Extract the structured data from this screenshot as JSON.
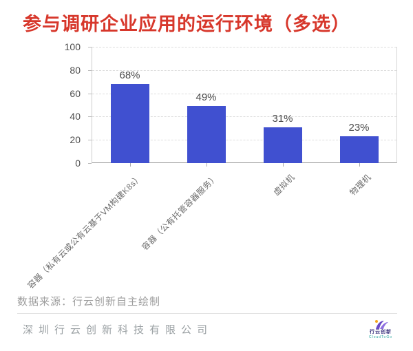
{
  "title": {
    "text": "参与调研企业应用的运行环境（多选）",
    "color": "#d7372b"
  },
  "chart_data": {
    "type": "bar",
    "title": "参与调研企业应用的运行环境（多选）",
    "categories": [
      "容器（私有云或公有云基于VM构建K8s）",
      "容器（公有托管容器服务）",
      "虚拟机",
      "物理机"
    ],
    "values": [
      68,
      49,
      31,
      23
    ],
    "data_labels": [
      "68%",
      "49%",
      "31%",
      "23%"
    ],
    "xlabel": "",
    "ylabel": "",
    "ylim": [
      0,
      100
    ],
    "yticks": [
      0,
      20,
      40,
      60,
      80,
      100
    ],
    "grid": "horizontal-dashed",
    "legend": "none",
    "bar_color": "#4050d0"
  },
  "source_note": {
    "text": "数据来源：行云创新自主绘制"
  },
  "footer": {
    "company": "深圳行云创新科技有限公司",
    "logo": {
      "name": "行云创新",
      "tagline": "CloudToGo",
      "swoosh_color": "#6b4bc8",
      "swoosh_color_light": "#8f6fe0",
      "dot_color": "#f5a81c"
    }
  }
}
